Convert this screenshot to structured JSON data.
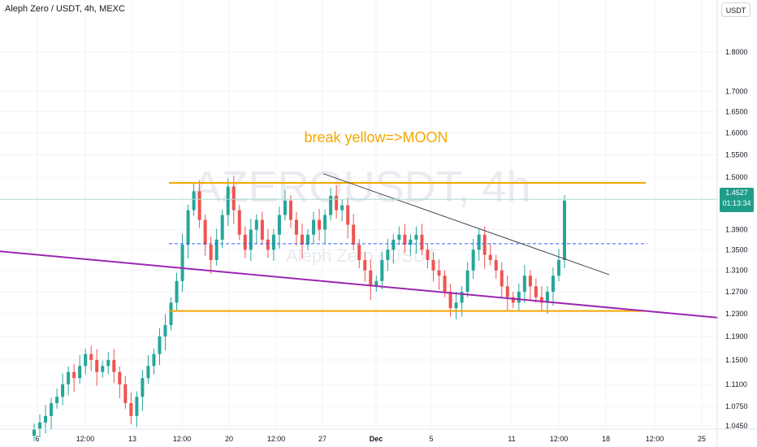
{
  "header": {
    "title": "Aleph Zero / USDT, 4h, MEXC",
    "currency_button": "USDT"
  },
  "watermark": {
    "symbol": "AZEROUSDT, 4h",
    "name": "Aleph Zero / USDT"
  },
  "price_tag": {
    "price": "1.4527",
    "countdown": "01:13:34"
  },
  "annotation": {
    "text": "break yellow=>MOON",
    "color": "#f7a600"
  },
  "colors": {
    "up": "#26a69a",
    "down": "#ef5350",
    "orange": "#f7a600",
    "purple": "#9c27b0",
    "trend": "#434651",
    "dashed": "#2962ff"
  },
  "chart_data": {
    "type": "candlestick",
    "title": "Aleph Zero / USDT, 4h, MEXC",
    "y_scale": "log",
    "ylim": [
      1.02,
      1.92
    ],
    "y_ticks": [
      1.8,
      1.7,
      1.65,
      1.6,
      1.55,
      1.5,
      1.39,
      1.35,
      1.31,
      1.27,
      1.23,
      1.19,
      1.15,
      1.11,
      1.075,
      1.045
    ],
    "y_tick_labels": [
      "1.8000",
      "1.7000",
      "1.6500",
      "1.6000",
      "1.5500",
      "1.5000",
      "1.3900",
      "1.3500",
      "1.3100",
      "1.2700",
      "1.2300",
      "1.1900",
      "1.1500",
      "1.1100",
      "1.0750",
      "1.0450"
    ],
    "x_tick_labels": [
      "6",
      "12:00",
      "13",
      "12:00",
      "20",
      "12:00",
      "27",
      "Dec",
      "5",
      "11",
      "12:00",
      "18",
      "12:00",
      "25"
    ],
    "last_price": 1.4527,
    "close_series": [
      1.04,
      1.05,
      1.06,
      1.08,
      1.09,
      1.11,
      1.13,
      1.12,
      1.14,
      1.16,
      1.15,
      1.13,
      1.14,
      1.15,
      1.13,
      1.11,
      1.08,
      1.06,
      1.09,
      1.12,
      1.14,
      1.16,
      1.19,
      1.21,
      1.25,
      1.29,
      1.36,
      1.43,
      1.47,
      1.41,
      1.36,
      1.33,
      1.37,
      1.42,
      1.48,
      1.43,
      1.38,
      1.35,
      1.39,
      1.41,
      1.37,
      1.35,
      1.38,
      1.42,
      1.45,
      1.41,
      1.38,
      1.36,
      1.38,
      1.41,
      1.39,
      1.42,
      1.46,
      1.43,
      1.44,
      1.4,
      1.36,
      1.33,
      1.31,
      1.28,
      1.29,
      1.33,
      1.35,
      1.37,
      1.38,
      1.36,
      1.37,
      1.38,
      1.35,
      1.33,
      1.31,
      1.3,
      1.27,
      1.24,
      1.25,
      1.27,
      1.31,
      1.35,
      1.38,
      1.34,
      1.33,
      1.31,
      1.28,
      1.26,
      1.25,
      1.27,
      1.3,
      1.28,
      1.26,
      1.25,
      1.27,
      1.3,
      1.33,
      1.45
    ],
    "lines": [
      {
        "name": "upper orange level",
        "price": 1.488,
        "color": "#f7a600"
      },
      {
        "name": "lower orange level",
        "price": 1.235,
        "color": "#f7a600"
      },
      {
        "name": "dashed level",
        "price": 1.362,
        "color": "#2962ff"
      },
      {
        "name": "descending trendline",
        "from": 1.508,
        "to": 1.302,
        "color": "#434651"
      },
      {
        "name": "purple support",
        "from": 1.347,
        "to": 1.223,
        "color": "#9c27b0"
      },
      {
        "name": "last price line",
        "price": 1.4527,
        "color": "#26a69a"
      }
    ]
  }
}
